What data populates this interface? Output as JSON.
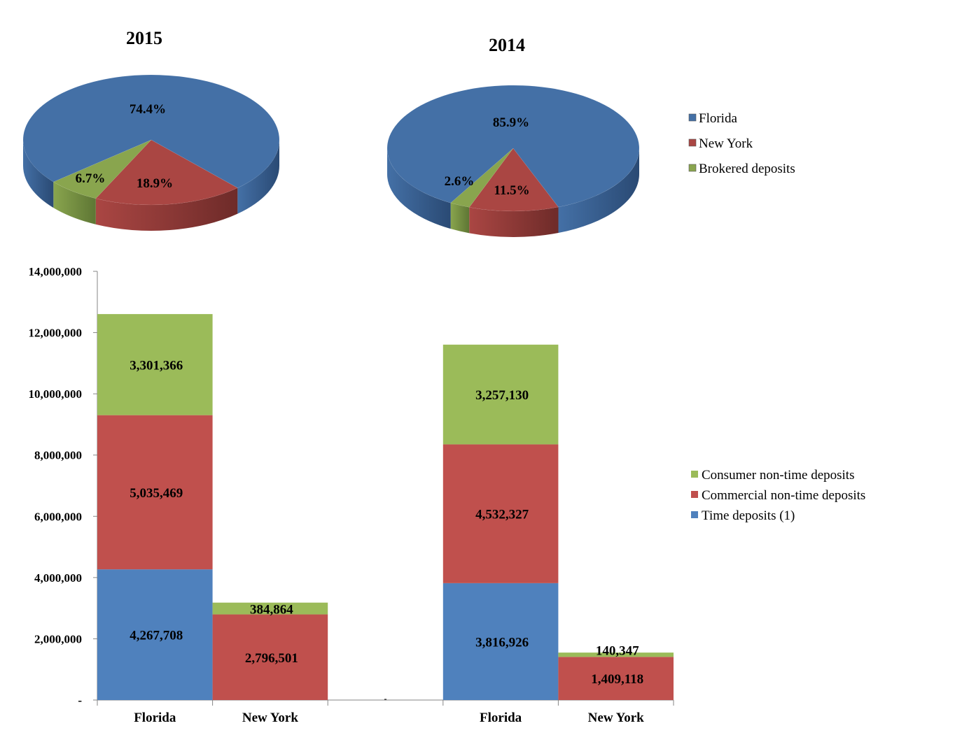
{
  "chart_data": [
    {
      "type": "pie",
      "title": "2015",
      "labels": [
        "Florida",
        "New York",
        "Brokered deposits"
      ],
      "values": [
        74.4,
        18.9,
        6.7
      ],
      "value_labels": [
        "74.4%",
        "18.9%",
        "6.7%"
      ]
    },
    {
      "type": "pie",
      "title": "2014",
      "labels": [
        "Florida",
        "New York",
        "Brokered deposits"
      ],
      "values": [
        85.9,
        11.5,
        2.6
      ],
      "value_labels": [
        "85.9%",
        "11.5%",
        "2.6%"
      ],
      "legend": "right"
    },
    {
      "type": "bar",
      "stacked": true,
      "categories": [
        "Florida",
        "New York",
        "-",
        "Florida",
        "New York"
      ],
      "series": [
        {
          "name": "Time deposits (1)",
          "values": [
            4267708,
            0,
            0,
            3816926,
            0
          ],
          "labels": [
            "4,267,708",
            "",
            "",
            "3,816,926",
            ""
          ]
        },
        {
          "name": "Commercial non-time deposits",
          "values": [
            5035469,
            2796501,
            0,
            4532327,
            1409118
          ],
          "labels": [
            "5,035,469",
            "2,796,501",
            "",
            "4,532,327",
            "1,409,118"
          ]
        },
        {
          "name": "Consumer non-time deposits",
          "values": [
            3301366,
            384864,
            0,
            3257130,
            140347
          ],
          "labels": [
            "3,301,366",
            "384,864",
            "",
            "3,257,130",
            "140,347"
          ]
        }
      ],
      "ylim": [
        0,
        14000000
      ],
      "yticks": [
        "-",
        "2,000,000",
        "4,000,000",
        "6,000,000",
        "8,000,000",
        "10,000,000",
        "12,000,000",
        "14,000,000"
      ],
      "legend": "right"
    }
  ],
  "colors": {
    "pie": [
      "#4470A6",
      "#AA4643",
      "#89A54E"
    ],
    "pie_side": [
      "#2A4A74",
      "#6E2B29",
      "#5E7634"
    ],
    "bar": [
      "#4F81BD",
      "#C0504D",
      "#9BBB59"
    ]
  }
}
